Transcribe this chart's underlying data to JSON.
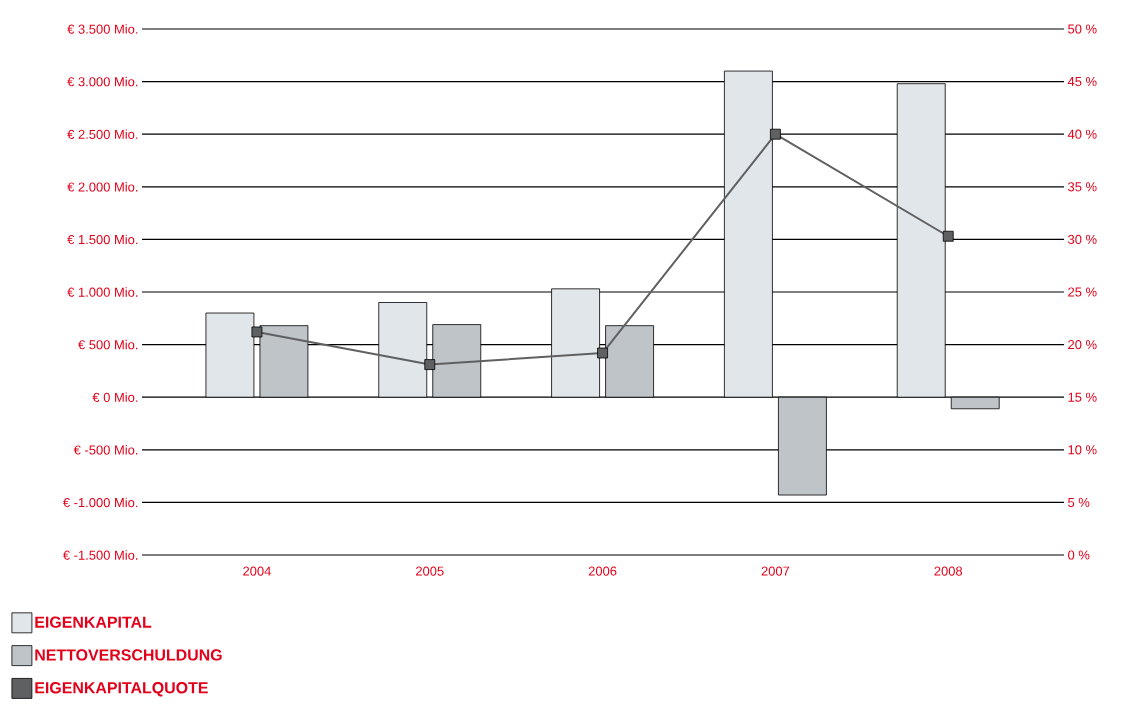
{
  "chart_data": {
    "type": "bar",
    "categories": [
      "2004",
      "2005",
      "2006",
      "2007",
      "2008"
    ],
    "series": [
      {
        "name": "EIGENKAPITAL",
        "color": "#e1e6ea",
        "values": [
          800,
          900,
          1030,
          3100,
          2980
        ]
      },
      {
        "name": "NETTOVERSCHULDUNG",
        "color": "#bfc4c8",
        "values": [
          680,
          690,
          680,
          -930,
          -110
        ]
      },
      {
        "name": "EIGENKAPITALQUOTE",
        "type": "line",
        "axis": "y2",
        "color": "#5f6062",
        "values": [
          21.2,
          18.1,
          19.2,
          40.0,
          30.3
        ]
      }
    ],
    "ylim": [
      -1500,
      3500
    ],
    "yticks": [
      {
        "value": -1500,
        "label": "€ -1.500 Mio."
      },
      {
        "value": -1000,
        "label": "€ -1.000 Mio."
      },
      {
        "value": -500,
        "label": "€ -500 Mio."
      },
      {
        "value": 0,
        "label": "€ 0 Mio."
      },
      {
        "value": 500,
        "label": "€ 500 Mio."
      },
      {
        "value": 1000,
        "label": "€ 1.000 Mio."
      },
      {
        "value": 1500,
        "label": "€ 1.500 Mio."
      },
      {
        "value": 2000,
        "label": "€ 2.000 Mio."
      },
      {
        "value": 2500,
        "label": "€ 2.500 Mio."
      },
      {
        "value": 3000,
        "label": "€ 3.000 Mio."
      },
      {
        "value": 3500,
        "label": "€ 3.500 Mio."
      }
    ],
    "y2lim": [
      0,
      50
    ],
    "y2ticks": [
      {
        "value": 0,
        "label": "0 %"
      },
      {
        "value": 5,
        "label": "5 %"
      },
      {
        "value": 10,
        "label": "10 %"
      },
      {
        "value": 15,
        "label": "15 %"
      },
      {
        "value": 20,
        "label": "20 %"
      },
      {
        "value": 25,
        "label": "25 %"
      },
      {
        "value": 30,
        "label": "30 %"
      },
      {
        "value": 35,
        "label": "35 %"
      },
      {
        "value": 40,
        "label": "40 %"
      },
      {
        "value": 45,
        "label": "45 %"
      },
      {
        "value": 50,
        "label": "50 %"
      }
    ],
    "grid": "y",
    "legend": "bottom left",
    "marker": "square"
  }
}
